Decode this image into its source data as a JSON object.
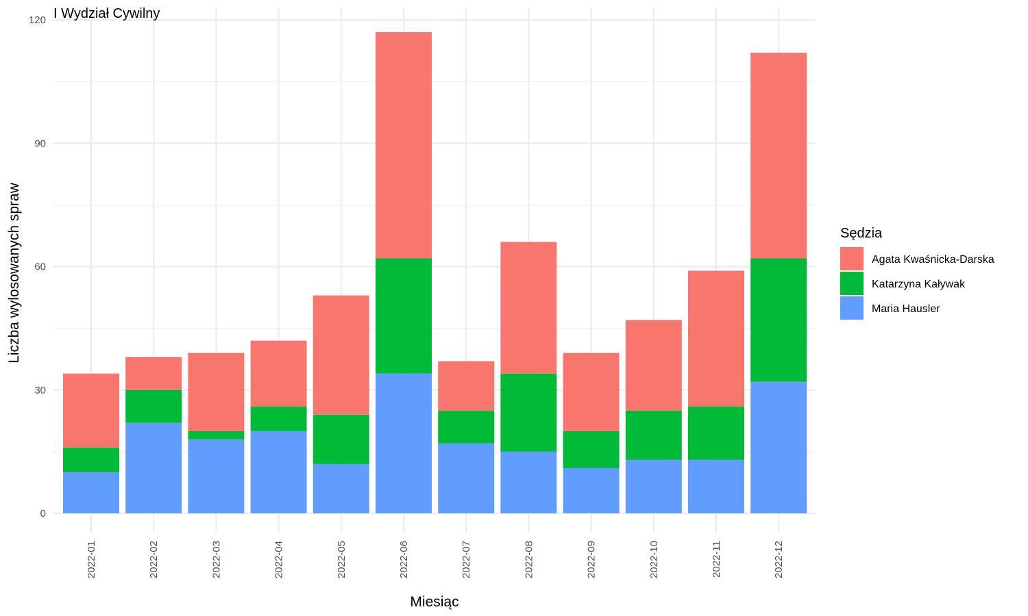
{
  "chart_data": {
    "type": "bar",
    "stacked": true,
    "title": "I Wydział Cywilny",
    "xlabel": "Miesiąc",
    "ylabel": "Liczba wylosowanych spraw",
    "ylim": [
      0,
      120
    ],
    "yticks": [
      0,
      30,
      60,
      90,
      120
    ],
    "grid": true,
    "legend": {
      "title": "Sędzia",
      "position": "right"
    },
    "categories": [
      "2022-01",
      "2022-02",
      "2022-03",
      "2022-04",
      "2022-05",
      "2022-06",
      "2022-07",
      "2022-08",
      "2022-09",
      "2022-10",
      "2022-11",
      "2022-12"
    ],
    "series": [
      {
        "name": "Agata Kwaśnicka-Darska",
        "color": "#F8766D",
        "values": [
          18,
          8,
          19,
          16,
          29,
          55,
          12,
          32,
          19,
          22,
          33,
          50
        ]
      },
      {
        "name": "Katarzyna Kaływak",
        "color": "#00BA38",
        "values": [
          6,
          8,
          2,
          6,
          12,
          28,
          8,
          19,
          9,
          12,
          13,
          30
        ]
      },
      {
        "name": "Maria Hausler",
        "color": "#619CFF",
        "values": [
          10,
          22,
          18,
          20,
          12,
          34,
          17,
          15,
          11,
          13,
          13,
          32
        ]
      }
    ]
  }
}
